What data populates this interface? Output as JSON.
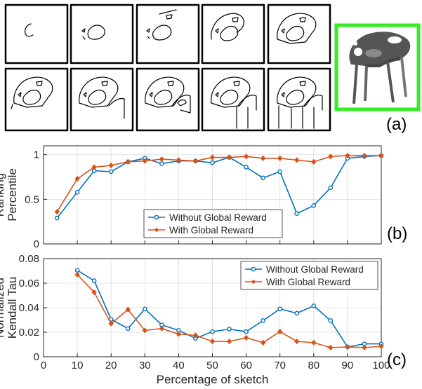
{
  "panels": {
    "a": {
      "label": "(a)",
      "sketch_frame_count": 10,
      "sketch_rows": 2,
      "photo_border_color": "#33ee22",
      "photo_description_icon": "chair-icon"
    }
  },
  "chart_data": [
    {
      "type": "line",
      "panel_label": "(b)",
      "ylabel": "Ranking\nPercentile",
      "xlabel": "",
      "xlim": [
        0,
        100
      ],
      "ylim": [
        0,
        1.1
      ],
      "yticks": [
        0,
        0.5,
        1
      ],
      "ytick_labels": [
        "0",
        "0.5",
        "1"
      ],
      "grid": true,
      "legend_position": "center-bottom",
      "series": [
        {
          "name": "Without Global Reward",
          "color": "#0072bd",
          "marker": "circle",
          "x": [
            4,
            10,
            15,
            20,
            25,
            30,
            35,
            40,
            45,
            50,
            55,
            60,
            65,
            70,
            75,
            80,
            85,
            90,
            95,
            100
          ],
          "y": [
            0.29,
            0.58,
            0.82,
            0.81,
            0.92,
            0.96,
            0.9,
            0.93,
            0.93,
            0.91,
            0.97,
            0.86,
            0.74,
            0.81,
            0.34,
            0.43,
            0.63,
            0.96,
            0.98,
            0.99
          ]
        },
        {
          "name": "With Global Reward",
          "color": "#d95319",
          "marker": "diamond",
          "x": [
            4,
            10,
            15,
            20,
            25,
            30,
            35,
            40,
            45,
            50,
            55,
            60,
            65,
            70,
            75,
            80,
            85,
            90,
            95,
            100
          ],
          "y": [
            0.36,
            0.73,
            0.86,
            0.88,
            0.92,
            0.93,
            0.95,
            0.94,
            0.93,
            0.97,
            0.97,
            0.98,
            0.96,
            0.96,
            0.94,
            0.92,
            0.98,
            0.99,
            0.99,
            0.99
          ]
        }
      ]
    },
    {
      "type": "line",
      "panel_label": "(c)",
      "ylabel": "Normalized\nKendall Tau",
      "xlabel": "Percentage of sketch",
      "xlim": [
        0,
        100
      ],
      "ylim": [
        0,
        0.08
      ],
      "xticks": [
        0,
        10,
        20,
        30,
        40,
        50,
        60,
        70,
        80,
        90,
        100
      ],
      "yticks": [
        0,
        0.02,
        0.04,
        0.06,
        0.08
      ],
      "ytick_labels": [
        "0",
        "0.02",
        "0.04",
        "0.06",
        "0.08"
      ],
      "grid": true,
      "legend_position": "top-right",
      "series": [
        {
          "name": "Without Global Reward",
          "color": "#0072bd",
          "marker": "circle",
          "x": [
            10,
            15,
            20,
            25,
            30,
            35,
            40,
            45,
            50,
            55,
            60,
            65,
            70,
            75,
            80,
            85,
            90,
            95,
            100
          ],
          "y": [
            0.0705,
            0.062,
            0.0305,
            0.023,
            0.039,
            0.026,
            0.0215,
            0.015,
            0.0205,
            0.0225,
            0.0205,
            0.0295,
            0.039,
            0.0355,
            0.0415,
            0.0295,
            0.008,
            0.0105,
            0.0105
          ]
        },
        {
          "name": "With Global Reward",
          "color": "#d95319",
          "marker": "diamond",
          "x": [
            10,
            15,
            20,
            25,
            30,
            35,
            40,
            45,
            50,
            55,
            60,
            65,
            70,
            75,
            80,
            85,
            90,
            95,
            100
          ],
          "y": [
            0.067,
            0.0525,
            0.027,
            0.0385,
            0.0215,
            0.023,
            0.0185,
            0.0175,
            0.0125,
            0.0125,
            0.0155,
            0.0115,
            0.0205,
            0.0125,
            0.0115,
            0.0075,
            0.008,
            0.0075,
            0.0085
          ]
        }
      ]
    }
  ]
}
